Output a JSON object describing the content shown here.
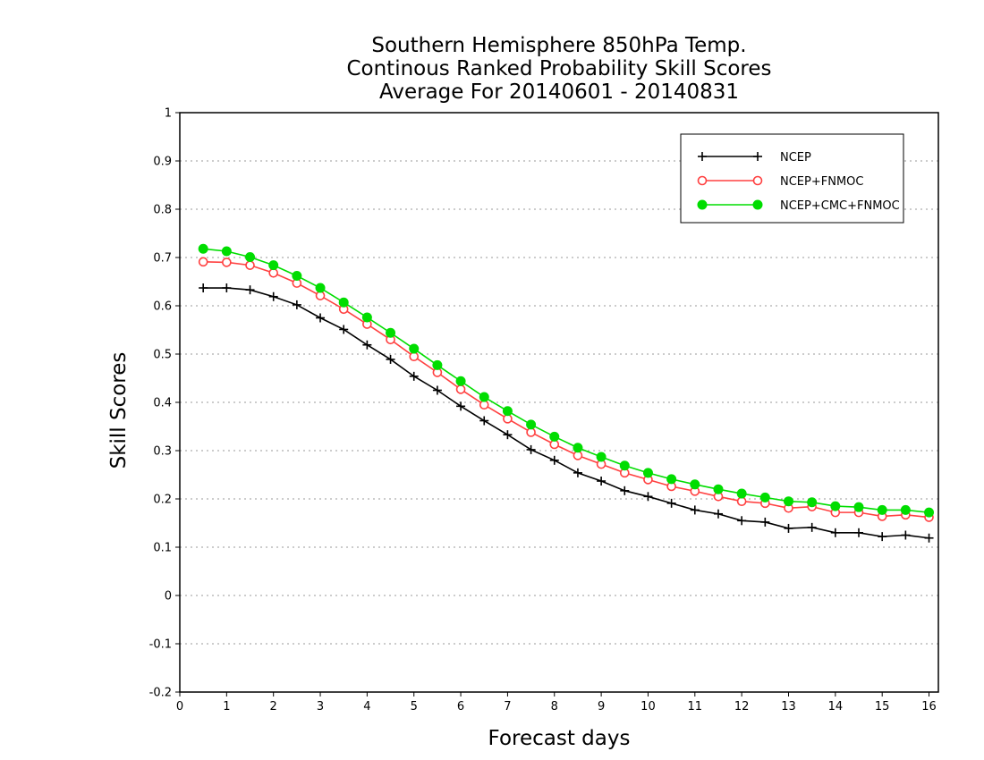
{
  "chart_data": {
    "type": "line",
    "title_lines": [
      "Southern Hemisphere 850hPa Temp.",
      "Continous Ranked Probability Skill Scores",
      "Average For 20140601 - 20140831"
    ],
    "xlabel": "Forecast days",
    "ylabel": "Skill Scores",
    "xlim": [
      0,
      16.2
    ],
    "ylim": [
      -0.2,
      1
    ],
    "x_ticks": [
      0,
      1,
      2,
      3,
      4,
      5,
      6,
      7,
      8,
      9,
      10,
      11,
      12,
      13,
      14,
      15,
      16
    ],
    "x_tick_labels": [
      "0",
      "1",
      "2",
      "3",
      "4",
      "5",
      "6",
      "7",
      "8",
      "9",
      "10",
      "11",
      "12",
      "13",
      "14",
      "15",
      "16"
    ],
    "y_ticks": [
      -0.2,
      -0.1,
      0,
      0.1,
      0.2,
      0.3,
      0.4,
      0.5,
      0.6,
      0.7,
      0.8,
      0.9,
      1
    ],
    "y_tick_labels": [
      "-0.2",
      "-0.1",
      "0",
      "0.1",
      "0.2",
      "0.3",
      "0.4",
      "0.5",
      "0.6",
      "0.7",
      "0.8",
      "0.9",
      "1"
    ],
    "grid": "horizontal-dotted",
    "legend_position": "top-right",
    "x": [
      0.5,
      1,
      1.5,
      2,
      2.5,
      3,
      3.5,
      4,
      4.5,
      5,
      5.5,
      6,
      6.5,
      7,
      7.5,
      8,
      8.5,
      9,
      9.5,
      10,
      10.5,
      11,
      11.5,
      12,
      12.5,
      13,
      13.5,
      14,
      14.5,
      15,
      15.5,
      16
    ],
    "series": [
      {
        "name": "NCEP",
        "color": "#000000",
        "marker": "plus",
        "values": [
          0.637,
          0.637,
          0.633,
          0.619,
          0.602,
          0.575,
          0.551,
          0.519,
          0.489,
          0.454,
          0.425,
          0.392,
          0.362,
          0.333,
          0.302,
          0.28,
          0.254,
          0.237,
          0.217,
          0.205,
          0.191,
          0.177,
          0.169,
          0.155,
          0.152,
          0.139,
          0.141,
          0.13,
          0.13,
          0.122,
          0.125,
          0.119
        ]
      },
      {
        "name": "NCEP+FNMOC",
        "color": "#ff4040",
        "marker": "open-circle",
        "values": [
          0.691,
          0.69,
          0.684,
          0.668,
          0.647,
          0.621,
          0.593,
          0.562,
          0.53,
          0.495,
          0.462,
          0.427,
          0.395,
          0.366,
          0.338,
          0.313,
          0.29,
          0.272,
          0.254,
          0.24,
          0.226,
          0.216,
          0.205,
          0.195,
          0.191,
          0.181,
          0.184,
          0.172,
          0.172,
          0.164,
          0.167,
          0.162
        ]
      },
      {
        "name": "NCEP+CMC+FNMOC",
        "color": "#00dd00",
        "marker": "filled-circle",
        "values": [
          0.718,
          0.713,
          0.701,
          0.684,
          0.662,
          0.637,
          0.607,
          0.576,
          0.544,
          0.511,
          0.477,
          0.444,
          0.411,
          0.382,
          0.354,
          0.329,
          0.306,
          0.287,
          0.269,
          0.254,
          0.241,
          0.23,
          0.22,
          0.211,
          0.203,
          0.195,
          0.193,
          0.185,
          0.183,
          0.177,
          0.177,
          0.172
        ]
      }
    ]
  }
}
